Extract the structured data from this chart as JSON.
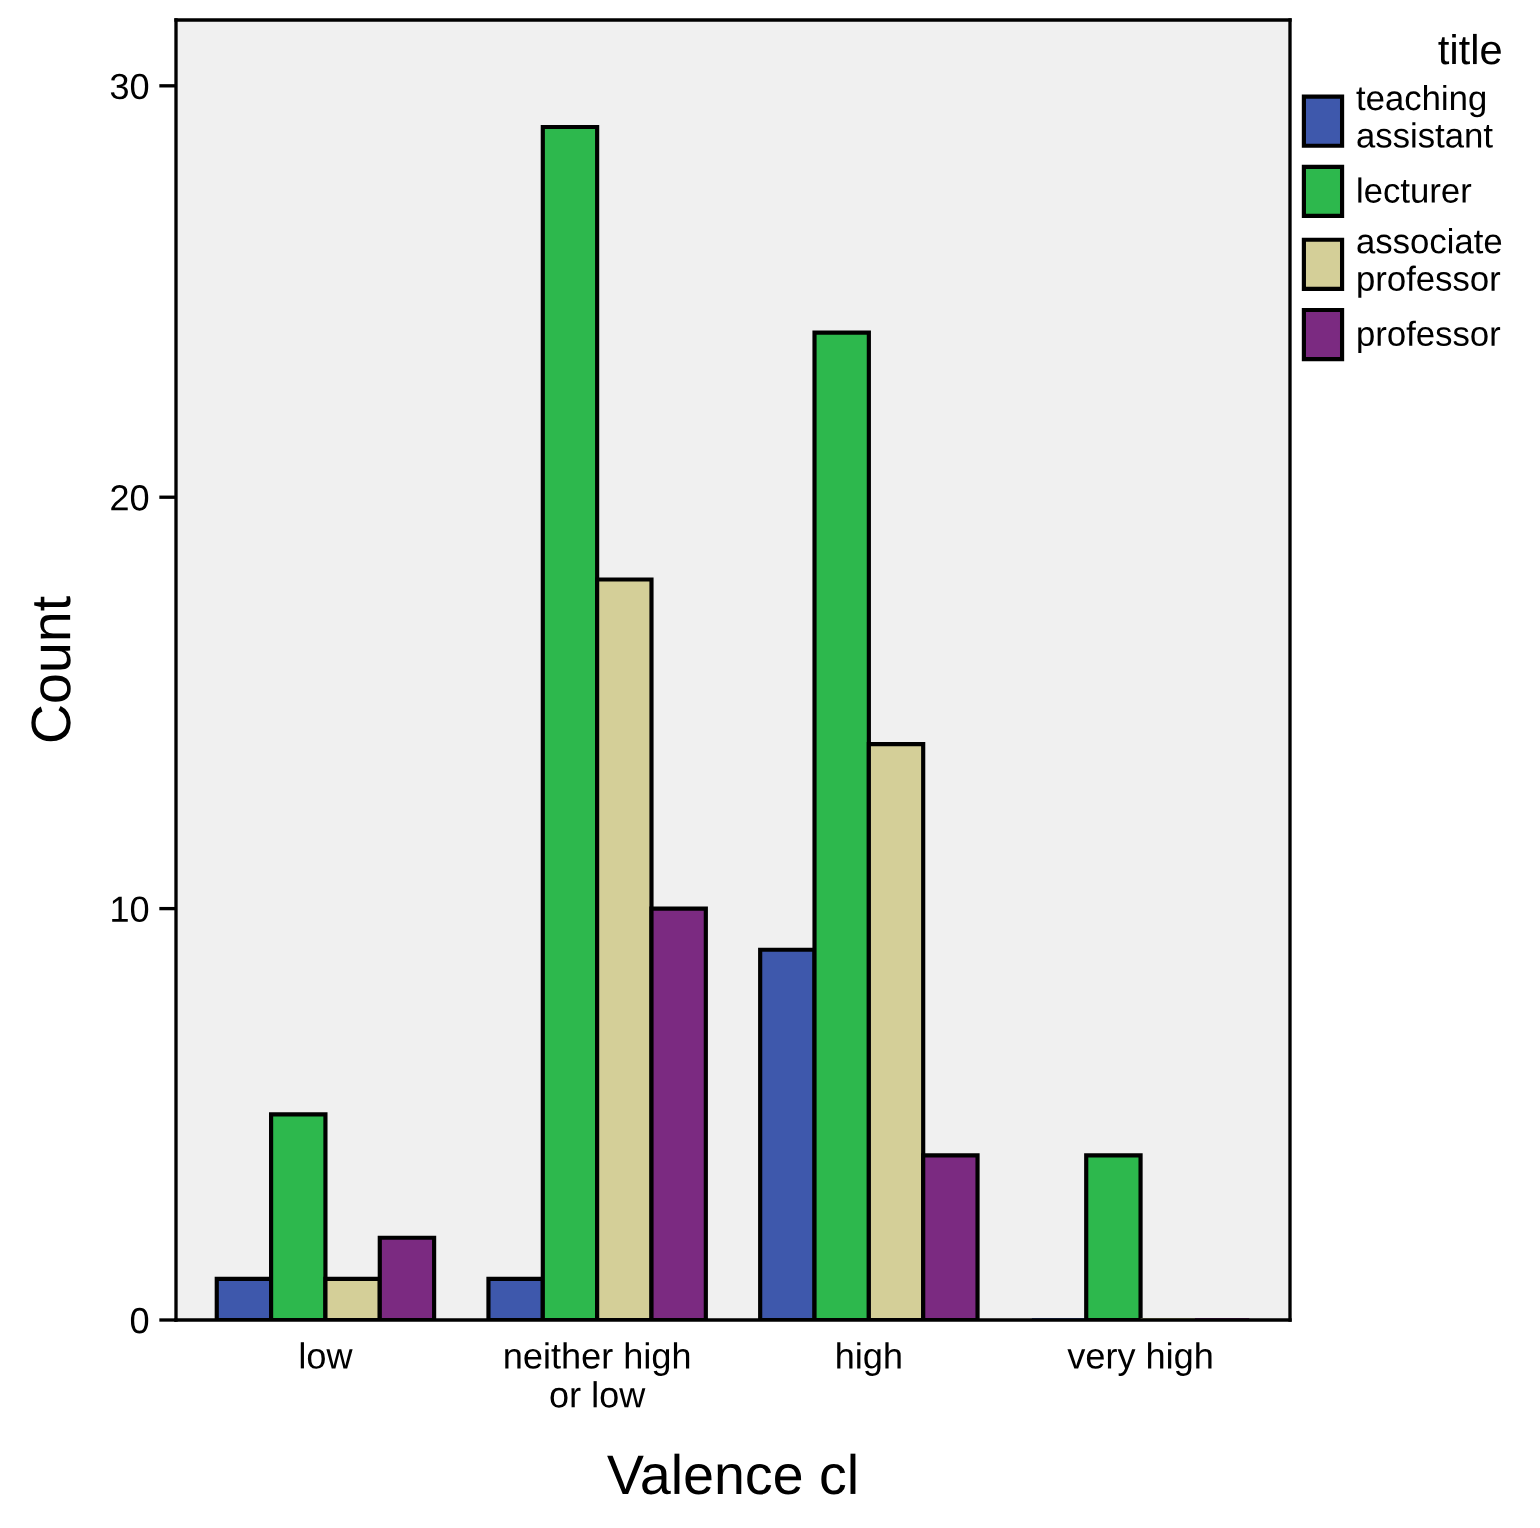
{
  "chart_data": {
    "type": "bar",
    "xlabel": "Valence cl",
    "ylabel": "Count",
    "legend_title": "title",
    "categories": [
      "low",
      "neither high\nor low",
      "high",
      "very high"
    ],
    "series": [
      {
        "name": "teaching\nassistant",
        "color": "#3e58ac",
        "values": [
          1,
          1,
          9,
          0
        ]
      },
      {
        "name": "lecturer",
        "color": "#2db84d",
        "values": [
          5,
          29,
          24,
          4
        ]
      },
      {
        "name": "associate\nprofessor",
        "color": "#d4cf98",
        "values": [
          1,
          18,
          14,
          0
        ]
      },
      {
        "name": "professor",
        "color": "#7b2a81",
        "values": [
          2,
          10,
          4,
          0
        ]
      }
    ],
    "ylim": [
      0,
      31.6
    ],
    "yticks": [
      0,
      10,
      20,
      30
    ],
    "grid": false,
    "legend": "top right"
  }
}
